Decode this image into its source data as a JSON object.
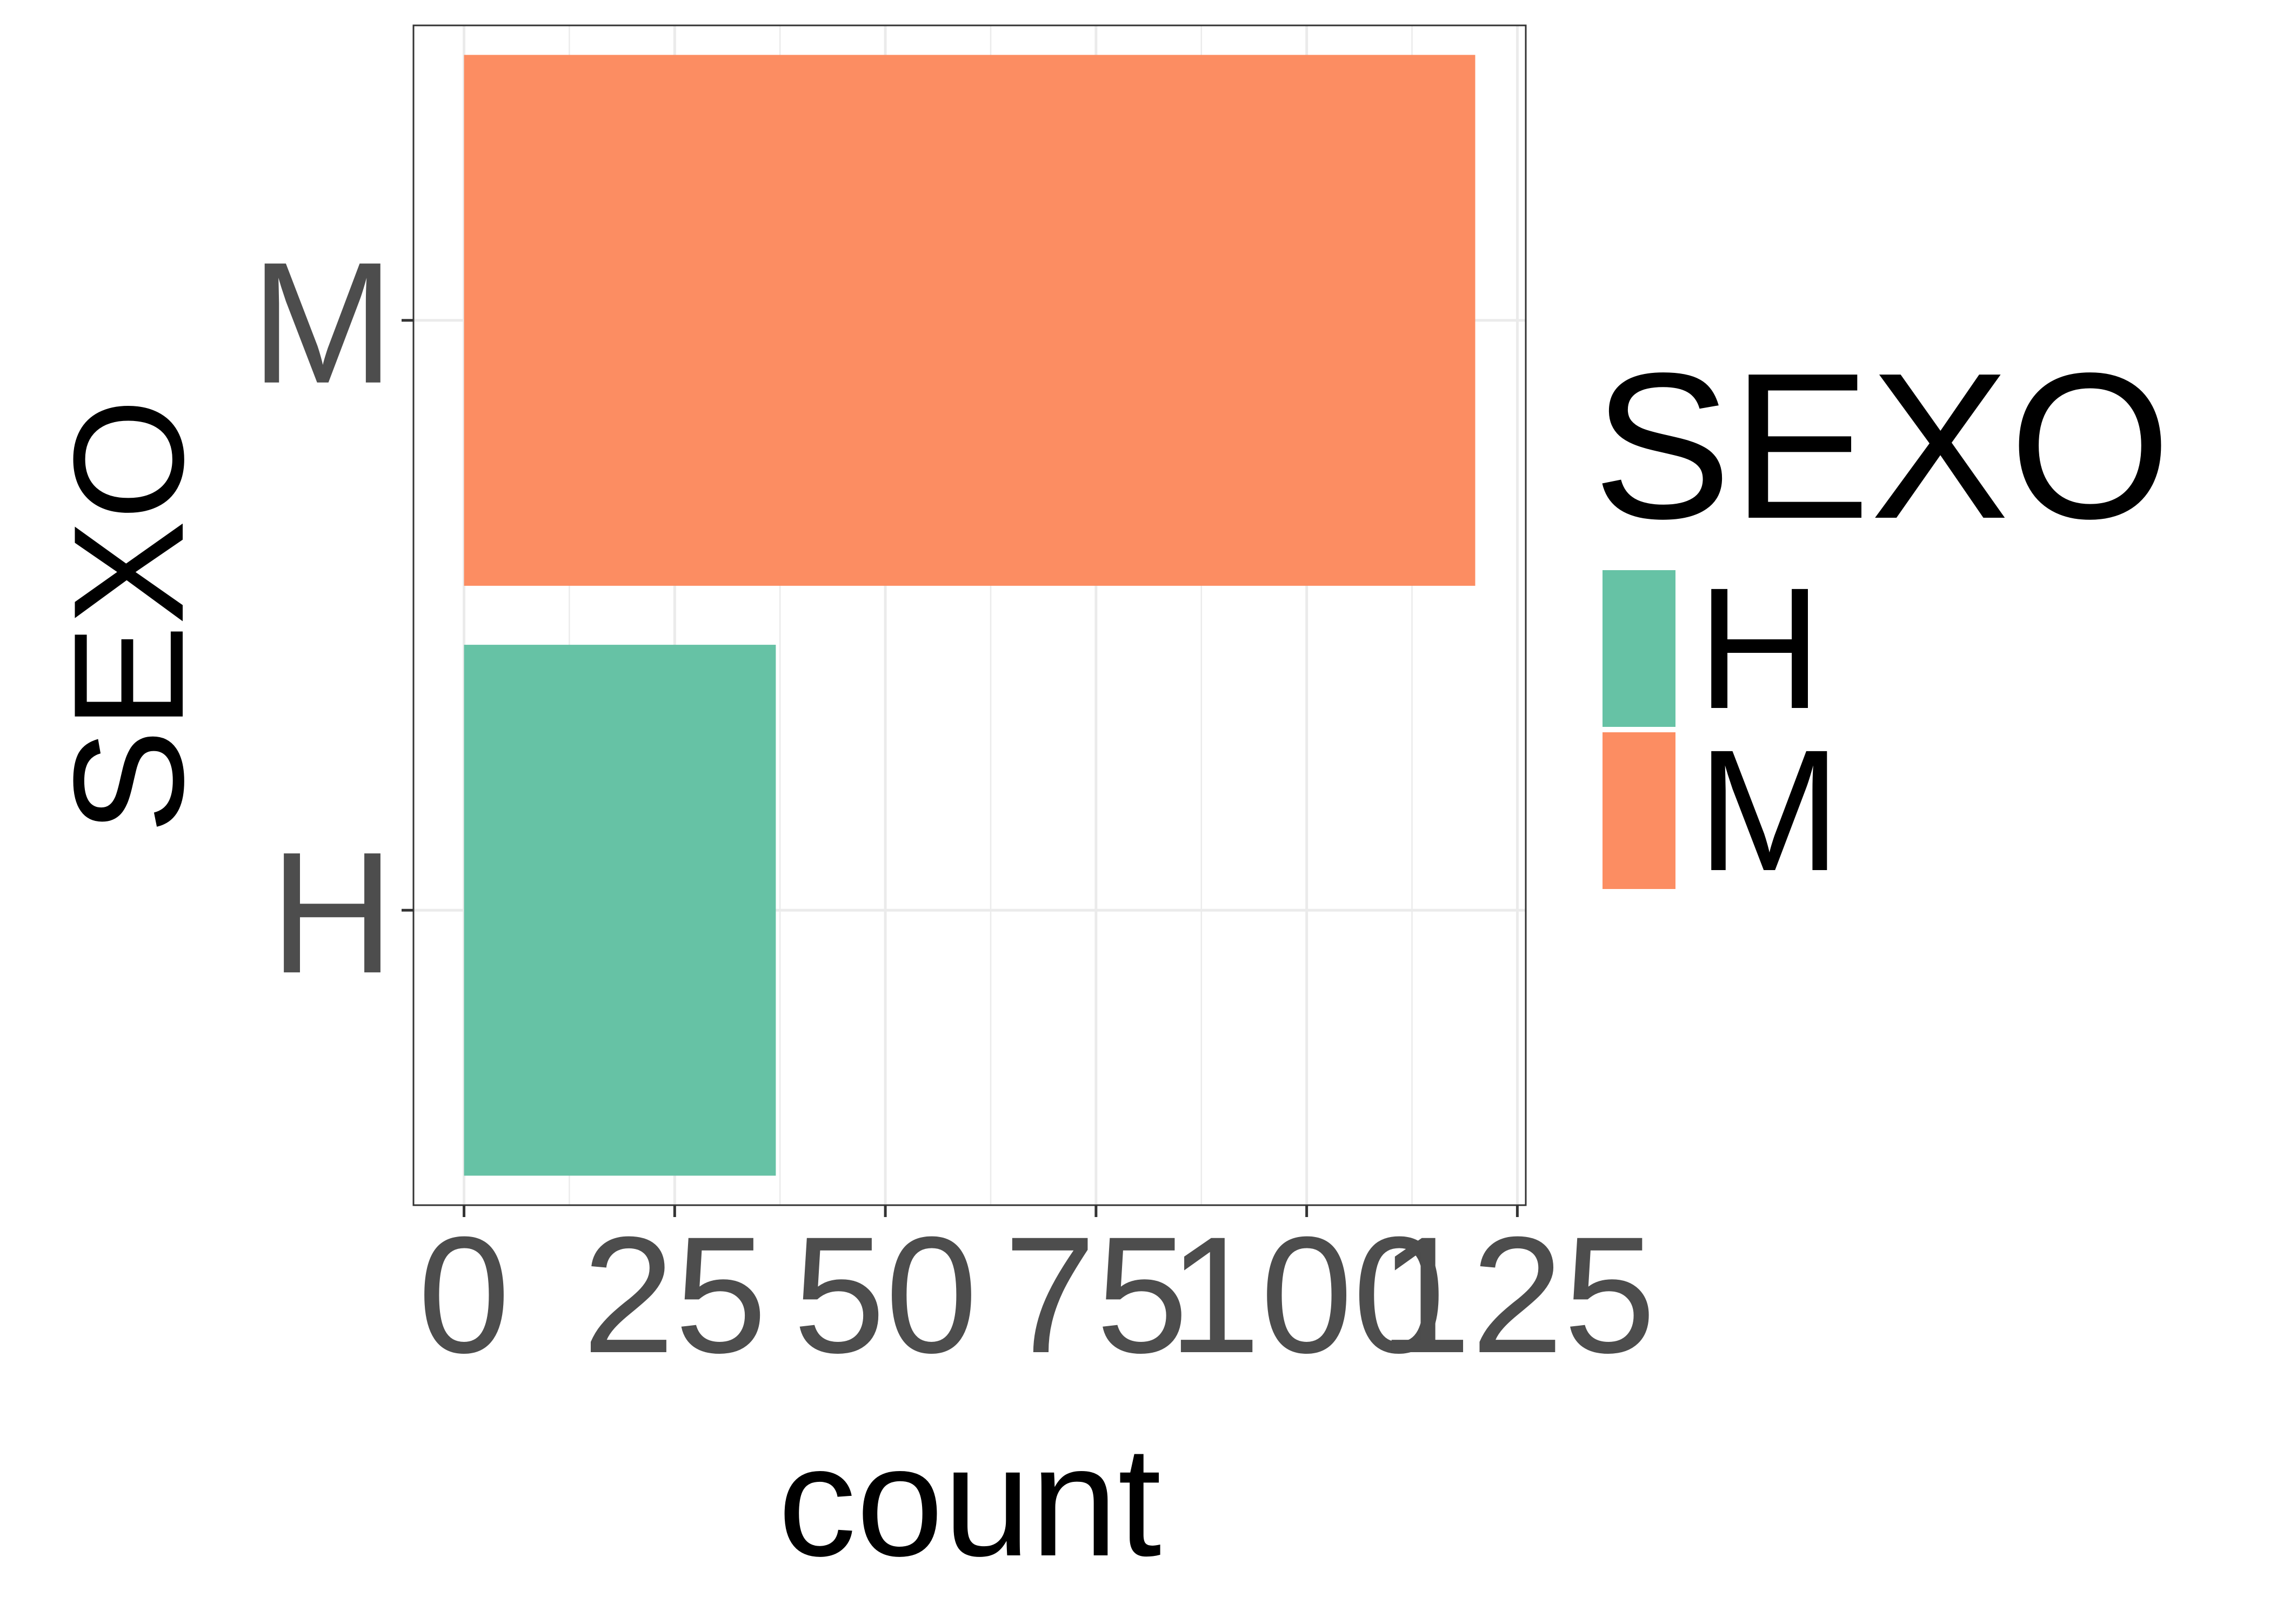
{
  "chart_data": {
    "type": "bar",
    "orientation": "horizontal",
    "categories": [
      "H",
      "M"
    ],
    "values": [
      37,
      120
    ],
    "colors": [
      "#66c2a5",
      "#fc8d62"
    ],
    "title": "",
    "xlabel": "count",
    "ylabel": "SEXO",
    "xlim": [
      -6,
      126
    ],
    "x_ticks": [
      0,
      25,
      50,
      75,
      100,
      125
    ],
    "x_tick_labels": [
      "0",
      "25",
      "50",
      "75",
      "100",
      "125"
    ],
    "grid": true,
    "legend": {
      "title": "SEXO",
      "placement": "right",
      "items": [
        {
          "label": "H",
          "color": "#66c2a5"
        },
        {
          "label": "M",
          "color": "#fc8d62"
        }
      ]
    }
  }
}
